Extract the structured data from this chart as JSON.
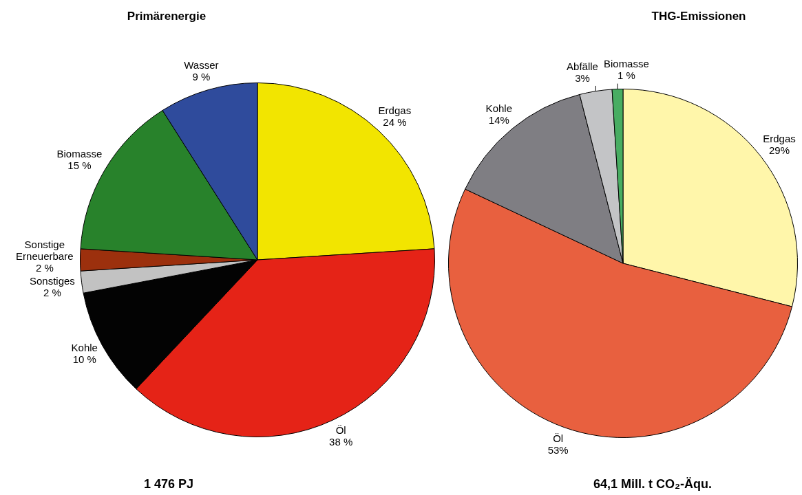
{
  "chart_data": [
    {
      "type": "pie",
      "title": "Primärenergie",
      "categories": [
        "Erdgas",
        "Öl",
        "Kohle",
        "Sonstiges",
        "Sonstige Erneuerbare",
        "Biomasse",
        "Wasser"
      ],
      "values": [
        24,
        38,
        10,
        2,
        2,
        15,
        9
      ],
      "colors": [
        "#f2e500",
        "#e52317",
        "#030303",
        "#c2c2c2",
        "#9c300d",
        "#28822b",
        "#2f4b9c"
      ],
      "value_labels": [
        "24 %",
        "38 %",
        "10 %",
        "2 %",
        "2 %",
        "15 %",
        "9 %"
      ],
      "annotations": [
        "1 476 PJ"
      ]
    },
    {
      "type": "pie",
      "title": "THG-Emissionen",
      "categories": [
        "Erdgas",
        "Öl",
        "Kohle",
        "Abfälle",
        "Biomasse"
      ],
      "values": [
        29,
        53,
        14,
        3,
        1
      ],
      "colors": [
        "#fff6aa",
        "#e8603f",
        "#7f7e83",
        "#c3c4c6",
        "#48ad62"
      ],
      "value_labels": [
        "29%",
        "53%",
        "14%",
        "3%",
        "1 %"
      ],
      "annotations": [
        "64,1 Mill. t CO₂-Äqu."
      ]
    }
  ]
}
